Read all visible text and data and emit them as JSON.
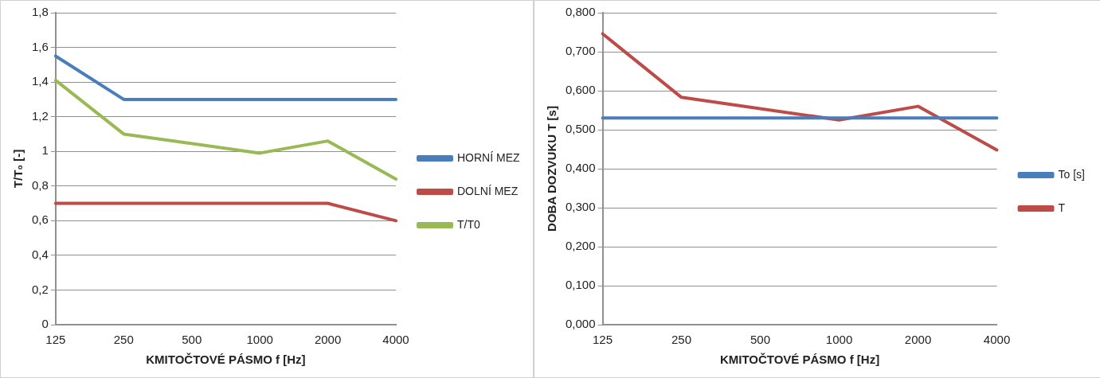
{
  "chart_data": [
    {
      "type": "line",
      "xlabel": "KMITOČTOVÉ PÁSMO f [Hz]",
      "ylabel": "T/T₀ [-]",
      "categories": [
        "125",
        "250",
        "500",
        "1000",
        "2000",
        "4000"
      ],
      "series": [
        {
          "name": "HORNÍ MEZ",
          "color": "#4a7ebb",
          "values": [
            1.55,
            1.3,
            1.3,
            1.3,
            1.3,
            1.3
          ]
        },
        {
          "name": "DOLNÍ MEZ",
          "color": "#be4b48",
          "values": [
            0.7,
            0.7,
            0.7,
            0.7,
            0.7,
            0.6
          ]
        },
        {
          "name": "T/T0",
          "color": "#98b954",
          "values": [
            1.41,
            1.1,
            null,
            0.99,
            1.06,
            0.84
          ]
        }
      ],
      "ylim": [
        0,
        1.8
      ],
      "yticks": [
        0,
        {
          "value": 0.2,
          "label": "0,2"
        },
        {
          "value": 0.4,
          "label": "0,4"
        },
        {
          "value": 0.6,
          "label": "0,6"
        },
        {
          "value": 0.8,
          "label": "0,8"
        },
        1,
        {
          "value": 1.2,
          "label": "1,2"
        },
        {
          "value": 1.4,
          "label": "1,4"
        },
        {
          "value": 1.6,
          "label": "1,6"
        },
        {
          "value": 1.8,
          "label": "1,8"
        }
      ],
      "grid": "y",
      "legend": "right",
      "marker": "none",
      "line_style": "solid"
    },
    {
      "type": "line",
      "xlabel": "KMITOČTOVÉ PÁSMO f [Hz]",
      "ylabel": "DOBA DOZVUKU T [s]",
      "categories": [
        "125",
        null,
        "250",
        null,
        "500",
        null,
        "1000",
        null,
        "2000",
        null,
        "4000"
      ],
      "series": [
        {
          "name": "To [s]",
          "color": "#4a7ebb",
          "values": [
            0.53,
            0.53,
            0.53,
            0.53,
            0.53,
            0.53,
            0.53,
            0.53,
            0.53,
            0.53,
            0.53
          ]
        },
        {
          "name": "T",
          "color": "#be4b48",
          "values": [
            0.746,
            null,
            0.583,
            null,
            null,
            null,
            0.525,
            null,
            0.56,
            null,
            0.448
          ]
        }
      ],
      "ylim": [
        0,
        0.8
      ],
      "yticks": [
        {
          "value": 0,
          "label": "0,000"
        },
        {
          "value": 0.1,
          "label": "0,100"
        },
        {
          "value": 0.2,
          "label": "0,200"
        },
        {
          "value": 0.3,
          "label": "0,300"
        },
        {
          "value": 0.4,
          "label": "0,400"
        },
        {
          "value": 0.5,
          "label": "0,500"
        },
        {
          "value": 0.6,
          "label": "0,600"
        },
        {
          "value": 0.7,
          "label": "0,700"
        },
        {
          "value": 0.8,
          "label": "0,800"
        }
      ],
      "grid": "y",
      "legend": "right",
      "marker": "none",
      "line_style": "solid"
    }
  ]
}
